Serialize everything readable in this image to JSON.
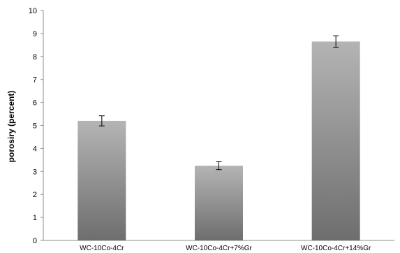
{
  "chart_data": {
    "type": "bar",
    "categories": [
      "WC-10Co-4Cr",
      "WC-10Co-4Cr+7%Gr",
      "WC-10Co-4Cr+14%Gr"
    ],
    "values": [
      5.2,
      3.25,
      8.65
    ],
    "error": [
      0.22,
      0.17,
      0.25
    ],
    "ylabel": "porosiry (percent)",
    "xlabel": "",
    "title": "",
    "ylim": [
      0,
      10
    ],
    "yticks": [
      0,
      1,
      2,
      3,
      4,
      5,
      6,
      7,
      8,
      9,
      10
    ],
    "grid": false,
    "legend": "none",
    "bar_color_top": "#b4b4b4",
    "bar_color_bottom": "#6e6e6e"
  }
}
